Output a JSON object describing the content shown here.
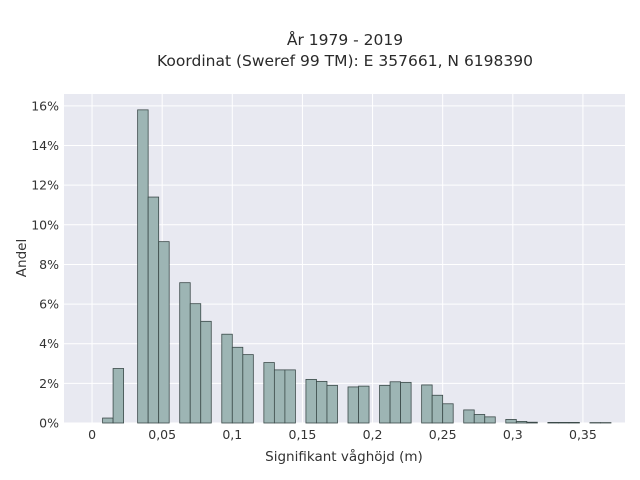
{
  "chart_data": {
    "type": "bar",
    "title": [
      "År 1979 - 2019",
      "Koordinat (Sweref 99 TM): E 357661, N 6198390"
    ],
    "xlabel": "Signifikant våghöjd (m)",
    "ylabel": "Andel",
    "xlim": [
      -0.02,
      0.38
    ],
    "ylim": [
      0,
      0.166
    ],
    "bin_width": 0.0075,
    "x_ticks": [
      0,
      0.05,
      0.1,
      0.15,
      0.2,
      0.25,
      0.3,
      0.35
    ],
    "x_tick_labels": [
      "0",
      "0,05",
      "0,1",
      "0,15",
      "0,2",
      "0,25",
      "0,3",
      "0,35"
    ],
    "y_ticks": [
      0,
      0.02,
      0.04,
      0.06,
      0.08,
      0.1,
      0.12,
      0.14,
      0.16
    ],
    "y_tick_labels": [
      "0%",
      "2%",
      "4%",
      "6%",
      "8%",
      "10%",
      "12%",
      "14%",
      "16%"
    ],
    "grid": true,
    "colors": {
      "plot_bg": "#e8e9f1",
      "bar_fill": "#9db5b4",
      "bar_edge": "#3b4a49",
      "grid": "#ffffff"
    },
    "bins": [
      {
        "x": 0.0075,
        "value": 0.0025
      },
      {
        "x": 0.015,
        "value": 0.0275
      },
      {
        "x": 0.0325,
        "value": 0.158
      },
      {
        "x": 0.04,
        "value": 0.114
      },
      {
        "x": 0.0475,
        "value": 0.0915
      },
      {
        "x": 0.0625,
        "value": 0.0708
      },
      {
        "x": 0.07,
        "value": 0.0602
      },
      {
        "x": 0.0775,
        "value": 0.0513
      },
      {
        "x": 0.0925,
        "value": 0.0448
      },
      {
        "x": 0.1,
        "value": 0.0382
      },
      {
        "x": 0.1075,
        "value": 0.0345
      },
      {
        "x": 0.1225,
        "value": 0.0305
      },
      {
        "x": 0.13,
        "value": 0.0268
      },
      {
        "x": 0.1375,
        "value": 0.0268
      },
      {
        "x": 0.1525,
        "value": 0.022
      },
      {
        "x": 0.16,
        "value": 0.021
      },
      {
        "x": 0.1675,
        "value": 0.019
      },
      {
        "x": 0.1825,
        "value": 0.0182
      },
      {
        "x": 0.19,
        "value": 0.0186
      },
      {
        "x": 0.205,
        "value": 0.019
      },
      {
        "x": 0.2125,
        "value": 0.0208
      },
      {
        "x": 0.22,
        "value": 0.0205
      },
      {
        "x": 0.235,
        "value": 0.0192
      },
      {
        "x": 0.2425,
        "value": 0.014
      },
      {
        "x": 0.25,
        "value": 0.0097
      },
      {
        "x": 0.265,
        "value": 0.0066
      },
      {
        "x": 0.2725,
        "value": 0.0043
      },
      {
        "x": 0.28,
        "value": 0.0031
      },
      {
        "x": 0.295,
        "value": 0.0018
      },
      {
        "x": 0.3025,
        "value": 0.0008
      },
      {
        "x": 0.31,
        "value": 0.0004
      },
      {
        "x": 0.325,
        "value": 0.0003
      },
      {
        "x": 0.3325,
        "value": 0.0003
      },
      {
        "x": 0.34,
        "value": 0.0003
      },
      {
        "x": 0.355,
        "value": 0.0002
      },
      {
        "x": 0.3625,
        "value": 0.0002
      }
    ]
  }
}
